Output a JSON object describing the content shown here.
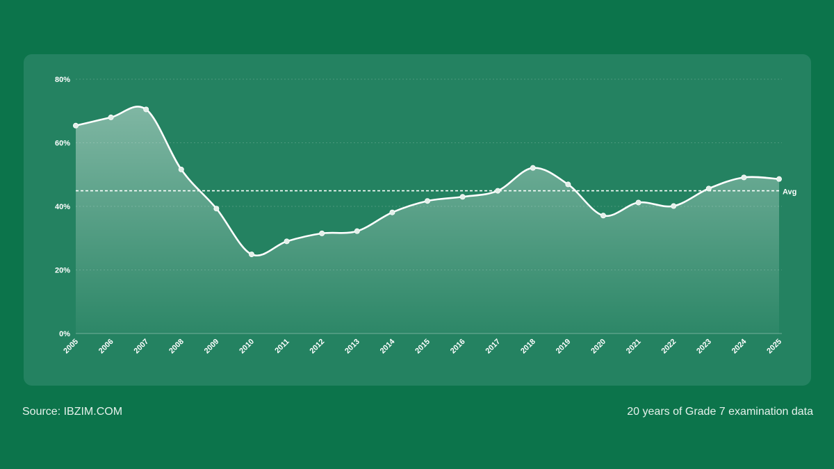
{
  "footer": {
    "source": "Source: IBZIM.COM",
    "caption": "20 years of Grade 7 examination data"
  },
  "chart_data": {
    "type": "area",
    "title": "",
    "xlabel": "",
    "ylabel": "",
    "ylim": [
      0,
      80
    ],
    "y_ticks": [
      "0%",
      "20%",
      "40%",
      "60%",
      "80%"
    ],
    "y_tick_values": [
      0,
      20,
      40,
      60,
      80
    ],
    "x": [
      "2005",
      "2006",
      "2007",
      "2008",
      "2009",
      "2010",
      "2011",
      "2012",
      "2013",
      "2014",
      "2015",
      "2016",
      "2017",
      "2018",
      "2019",
      "2020",
      "2021",
      "2022",
      "2023",
      "2024",
      "2025"
    ],
    "values": [
      65.4,
      68.0,
      70.5,
      51.6,
      39.3,
      24.9,
      29.0,
      31.5,
      32.2,
      38.1,
      41.7,
      43.0,
      44.9,
      52.1,
      46.9,
      37.1,
      41.2,
      40.1,
      45.6,
      49.1,
      48.6
    ],
    "average": {
      "label": "Avg",
      "value": 44.9
    },
    "grid": true,
    "colors": {
      "line": "#ffffff",
      "point": "#e3efe9",
      "background": "#248261",
      "page": "#0c744b"
    }
  }
}
